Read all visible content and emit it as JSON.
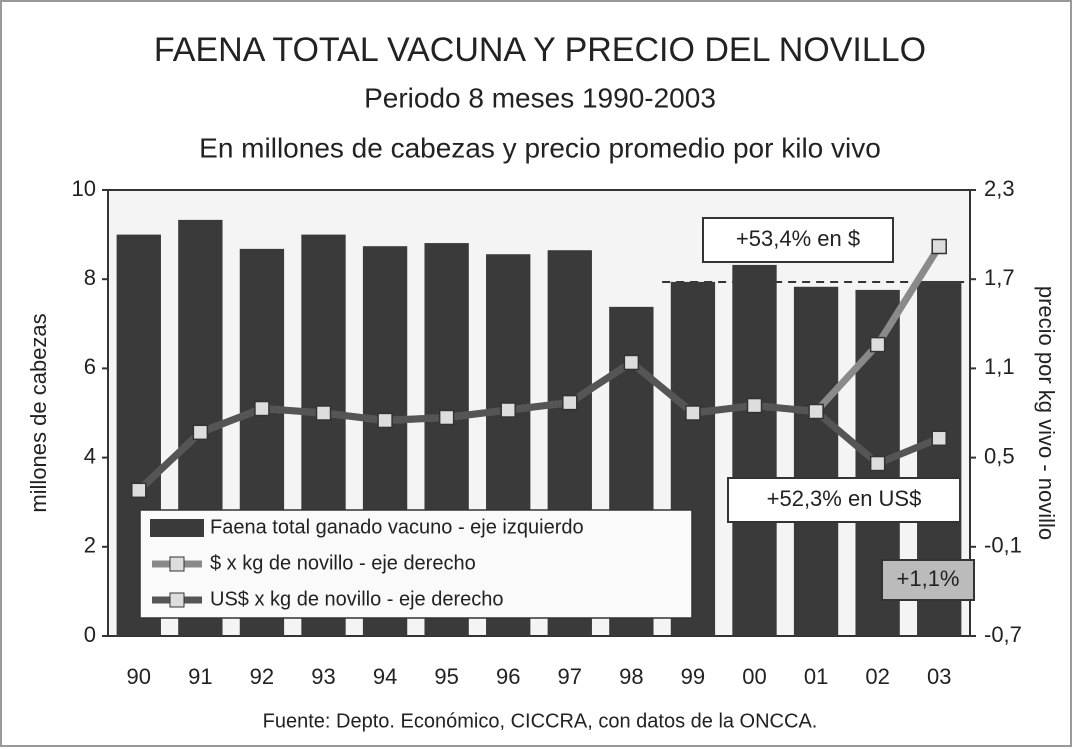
{
  "chart_data": {
    "type": "bar",
    "title": "FAENA TOTAL VACUNA Y PRECIO DEL NOVILLO",
    "subtitle": "Periodo 8 meses 1990-2003",
    "subtitle2": "En millones de cabezas y precio promedio por kilo vivo",
    "ylabel": "millones de cabezas",
    "y2label": "precio por kg vivo - novillo",
    "source": "Fuente: Depto. Económico, CICCRA, con datos de la ONCCA.",
    "categories": [
      "90",
      "91",
      "92",
      "93",
      "94",
      "95",
      "96",
      "97",
      "98",
      "99",
      "00",
      "01",
      "02",
      "03"
    ],
    "ylim": [
      0,
      10
    ],
    "yticks": [
      0,
      2,
      4,
      6,
      8,
      10
    ],
    "y2lim": [
      -0.7,
      2.3
    ],
    "y2ticks": [
      {
        "value": -0.7,
        "label": "-0,7"
      },
      {
        "value": -0.1,
        "label": "-0,1"
      },
      {
        "value": 0.5,
        "label": "0,5"
      },
      {
        "value": 1.1,
        "label": "1,1"
      },
      {
        "value": 1.7,
        "label": "1,7"
      },
      {
        "value": 2.3,
        "label": "2,3"
      }
    ],
    "series": [
      {
        "name": "Faena total ganado vacuno - eje izquierdo",
        "type": "bar",
        "color": "#3a3a3a",
        "values": [
          9.0,
          9.33,
          8.68,
          9.0,
          8.74,
          8.81,
          8.56,
          8.65,
          7.38,
          7.94,
          8.32,
          7.83,
          7.76,
          7.96
        ]
      },
      {
        "name": "$ x kg de novillo - eje derecho",
        "type": "line",
        "axis": "y2",
        "color": "#8a8a8a",
        "values": [
          0.28,
          0.67,
          0.83,
          0.8,
          0.75,
          0.77,
          0.82,
          0.87,
          1.14,
          0.8,
          0.85,
          0.81,
          1.26,
          1.92
        ]
      },
      {
        "name": "US$ x kg de novillo - eje derecho",
        "type": "line",
        "axis": "y2",
        "color": "#555555",
        "values": [
          0.28,
          0.67,
          0.83,
          0.8,
          0.75,
          0.77,
          0.82,
          0.87,
          1.14,
          0.8,
          0.85,
          0.81,
          0.46,
          0.63
        ]
      }
    ],
    "annotations": [
      "+53,4% en $",
      "+52,3% en US$",
      "+1,1%"
    ]
  }
}
